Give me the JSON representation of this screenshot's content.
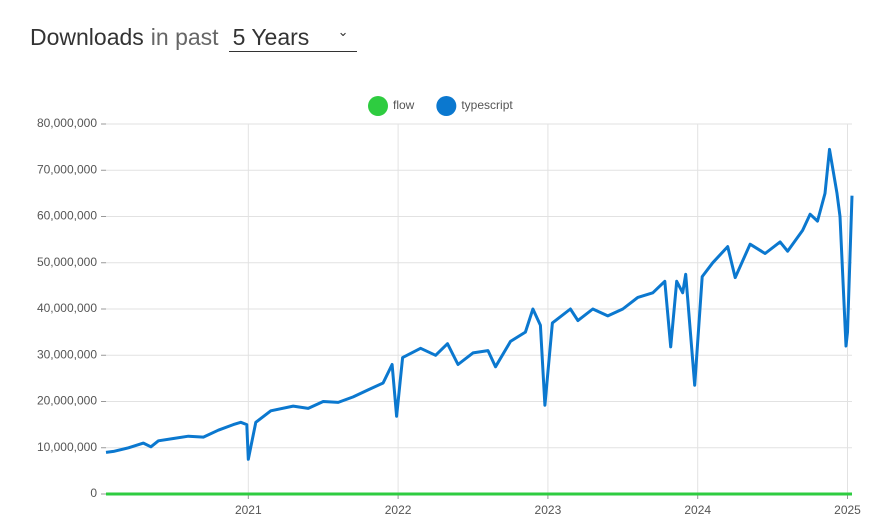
{
  "header": {
    "title": "Downloads",
    "prefix": "in past",
    "period": "5 Years"
  },
  "chart_data": {
    "type": "line",
    "x": [
      2020.05,
      2020.1,
      2020.2,
      2020.3,
      2020.35,
      2020.4,
      2020.5,
      2020.6,
      2020.7,
      2020.8,
      2020.9,
      2020.95,
      2020.99,
      2021.0,
      2021.05,
      2021.15,
      2021.3,
      2021.4,
      2021.5,
      2021.6,
      2021.7,
      2021.8,
      2021.9,
      2021.96,
      2021.99,
      2022.03,
      2022.15,
      2022.25,
      2022.33,
      2022.4,
      2022.5,
      2022.6,
      2022.65,
      2022.75,
      2022.85,
      2022.9,
      2022.95,
      2022.98,
      2023.03,
      2023.15,
      2023.2,
      2023.3,
      2023.4,
      2023.5,
      2023.6,
      2023.7,
      2023.78,
      2023.82,
      2023.86,
      2023.9,
      2023.92,
      2023.98,
      2024.03,
      2024.1,
      2024.2,
      2024.25,
      2024.35,
      2024.45,
      2024.55,
      2024.6,
      2024.7,
      2024.75,
      2024.8,
      2024.85,
      2024.88,
      2024.93,
      2024.95,
      2024.99,
      2025.0,
      2025.03
    ],
    "series": [
      {
        "name": "typescript",
        "color": "#0b78cf",
        "values": [
          9000000,
          9200000,
          10000000,
          11000000,
          10200000,
          11500000,
          12000000,
          12500000,
          12300000,
          13800000,
          15000000,
          15500000,
          15000000,
          7500000,
          15500000,
          18000000,
          19000000,
          18500000,
          20000000,
          19800000,
          21000000,
          22500000,
          24000000,
          28000000,
          16800000,
          29500000,
          31500000,
          30000000,
          32500000,
          28000000,
          30500000,
          31000000,
          27500000,
          33000000,
          35000000,
          40000000,
          36500000,
          19200000,
          37000000,
          40000000,
          37500000,
          40000000,
          38500000,
          40000000,
          42500000,
          43500000,
          46000000,
          31800000,
          46000000,
          43500000,
          47500000,
          23500000,
          47000000,
          50000000,
          53500000,
          46800000,
          54000000,
          52000000,
          54500000,
          52500000,
          57000000,
          60500000,
          59000000,
          65000000,
          74500000,
          65000000,
          60000000,
          32000000,
          35000000,
          64500000
        ]
      },
      {
        "name": "flow",
        "color": "#2ecc40",
        "values": [
          0,
          0,
          0,
          0,
          0,
          0,
          0,
          0,
          0,
          0,
          0,
          0,
          0,
          0,
          0,
          0,
          0,
          0,
          0,
          0,
          0,
          0,
          0,
          0,
          0,
          0,
          0,
          0,
          0,
          0,
          0,
          0,
          0,
          0,
          0,
          0,
          0,
          0,
          0,
          0,
          0,
          0,
          0,
          0,
          0,
          0,
          0,
          0,
          0,
          0,
          0,
          0,
          0,
          0,
          0,
          0,
          0,
          0,
          0,
          0,
          0,
          0,
          0,
          0,
          0,
          0,
          0,
          0,
          0,
          0
        ]
      }
    ],
    "legend_order": [
      "flow",
      "typescript"
    ],
    "xlim": [
      2020.05,
      2025.03
    ],
    "xticks": [
      2021,
      2022,
      2023,
      2024,
      2025
    ],
    "ylim": [
      0,
      80000000
    ],
    "yticks": [
      0,
      {
        "value": 10000000,
        "label": "10,000,000"
      },
      {
        "value": 20000000,
        "label": "20,000,000"
      },
      {
        "value": 30000000,
        "label": "30,000,000"
      },
      {
        "value": 40000000,
        "label": "40,000,000"
      },
      {
        "value": 50000000,
        "label": "50,000,000"
      },
      {
        "value": 60000000,
        "label": "60,000,000"
      },
      {
        "value": 70000000,
        "label": "70,000,000"
      },
      {
        "value": 80000000,
        "label": "80,000,000"
      }
    ],
    "grid": true
  }
}
